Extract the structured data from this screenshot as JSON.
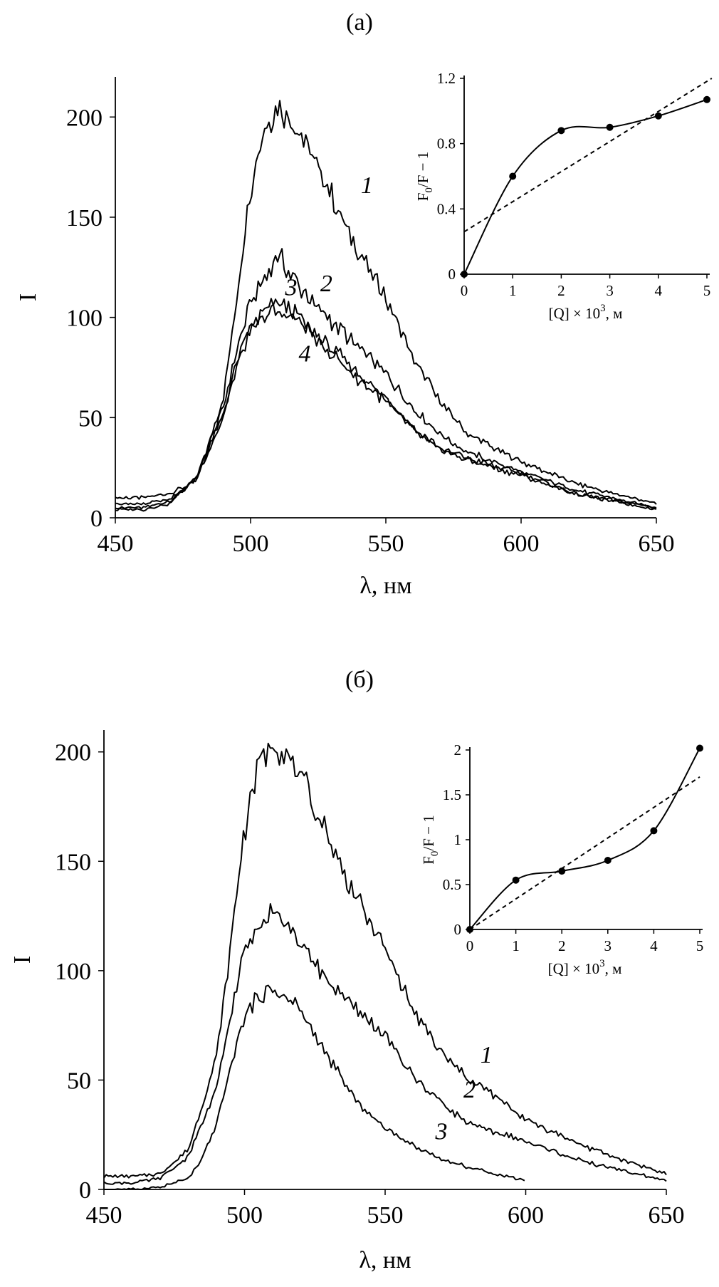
{
  "chart_data": [
    {
      "panel_label": "(a)",
      "type": "line",
      "xlabel": "λ, нм",
      "ylabel": "I",
      "xlim": [
        450,
        650
      ],
      "ylim": [
        0,
        220
      ],
      "x_ticks": [
        450,
        500,
        550,
        600,
        650
      ],
      "y_ticks": [
        0,
        50,
        100,
        150,
        200
      ],
      "series": [
        {
          "name": "1",
          "x": [
            450,
            460,
            470,
            480,
            490,
            495,
            500,
            505,
            510,
            515,
            520,
            530,
            540,
            550,
            560,
            570,
            580,
            590,
            600,
            620,
            650
          ],
          "y": [
            10,
            10,
            12,
            18,
            60,
            110,
            165,
            195,
            203,
            200,
            188,
            160,
            132,
            110,
            80,
            58,
            42,
            35,
            28,
            17,
            7
          ]
        },
        {
          "name": "2",
          "x": [
            450,
            460,
            470,
            480,
            490,
            495,
            500,
            505,
            510,
            515,
            520,
            530,
            540,
            550,
            560,
            570,
            580,
            590,
            600,
            620,
            650
          ],
          "y": [
            7,
            7,
            9,
            20,
            55,
            85,
            108,
            118,
            132,
            121,
            112,
            98,
            85,
            72,
            55,
            42,
            33,
            28,
            23,
            14,
            5
          ]
        },
        {
          "name": "3",
          "x": [
            450,
            460,
            470,
            480,
            490,
            495,
            500,
            505,
            510,
            515,
            520,
            530,
            540,
            550,
            560,
            570,
            580,
            590,
            600,
            620,
            650
          ],
          "y": [
            5,
            5,
            8,
            20,
            52,
            78,
            95,
            103,
            107,
            105,
            97,
            85,
            72,
            60,
            45,
            35,
            30,
            26,
            22,
            12,
            5
          ]
        },
        {
          "name": "4",
          "x": [
            450,
            460,
            470,
            480,
            490,
            495,
            500,
            505,
            510,
            515,
            520,
            530,
            540,
            550,
            560,
            570,
            580,
            590,
            600,
            620,
            650
          ],
          "y": [
            4,
            4,
            7,
            20,
            50,
            76,
            93,
            100,
            103,
            101,
            95,
            82,
            69,
            58,
            44,
            34,
            29,
            25,
            21,
            12,
            4
          ]
        }
      ],
      "inset": {
        "type": "scatter",
        "xlabel_main": "[Q] × 10",
        "xlabel_exp": "3",
        "xlabel_unit": ", м",
        "ylabel_main": "F",
        "ylabel_sub": "0",
        "ylabel_rest": "/F − 1",
        "xlim": [
          0,
          5
        ],
        "ylim": [
          0,
          1.2
        ],
        "x_ticks": [
          0,
          1,
          2,
          3,
          4,
          5
        ],
        "y_ticks": [
          0,
          0.4,
          0.8,
          1.2
        ],
        "y_tick_labels": [
          "0",
          "0.4",
          "0.8",
          "1.2"
        ],
        "points": {
          "x": [
            0,
            1,
            2,
            3,
            4,
            5
          ],
          "y": [
            0,
            0.6,
            0.88,
            0.9,
            0.97,
            1.07
          ]
        },
        "fit_line": {
          "x": [
            0,
            5.1
          ],
          "y": [
            0.26,
            1.2
          ]
        }
      },
      "curve_labels": [
        {
          "text": "1",
          "x": 543,
          "y": 162
        },
        {
          "text": "2",
          "x": 528,
          "y": 113
        },
        {
          "text": "3",
          "x": 515,
          "y": 111
        },
        {
          "text": "4",
          "x": 520,
          "y": 78
        }
      ]
    },
    {
      "panel_label": "(б)",
      "type": "line",
      "xlabel": "λ, нм",
      "ylabel": "I",
      "xlim": [
        450,
        650
      ],
      "ylim": [
        0,
        210
      ],
      "x_ticks": [
        450,
        500,
        550,
        600,
        650
      ],
      "y_ticks": [
        0,
        50,
        100,
        150,
        200
      ],
      "series": [
        {
          "name": "1",
          "x": [
            450,
            460,
            470,
            480,
            490,
            495,
            500,
            505,
            510,
            515,
            520,
            530,
            540,
            550,
            560,
            570,
            580,
            590,
            600,
            620,
            650
          ],
          "y": [
            6,
            6,
            7,
            18,
            60,
            110,
            165,
            195,
            203,
            200,
            188,
            160,
            132,
            110,
            82,
            62,
            50,
            42,
            32,
            20,
            7
          ]
        },
        {
          "name": "2",
          "x": [
            450,
            460,
            470,
            480,
            490,
            495,
            500,
            505,
            510,
            515,
            520,
            530,
            540,
            550,
            560,
            570,
            580,
            590,
            600,
            620,
            650
          ],
          "y": [
            3,
            3,
            5,
            15,
            45,
            80,
            110,
            118,
            132,
            121,
            112,
            95,
            82,
            70,
            52,
            40,
            30,
            26,
            22,
            13,
            4
          ]
        },
        {
          "name": "3",
          "x": [
            450,
            460,
            470,
            480,
            485,
            490,
            495,
            500,
            505,
            510,
            515,
            520,
            530,
            540,
            550,
            560,
            570,
            580,
            590,
            600
          ],
          "y": [
            0,
            0,
            1,
            5,
            14,
            30,
            55,
            80,
            88,
            91,
            88,
            82,
            60,
            40,
            28,
            20,
            14,
            10,
            7,
            4
          ]
        }
      ],
      "inset": {
        "type": "scatter",
        "xlabel_main": "[Q] × 10",
        "xlabel_exp": "3",
        "xlabel_unit": ", м",
        "ylabel_main": "F",
        "ylabel_sub": "0",
        "ylabel_rest": "/F − 1",
        "xlim": [
          0,
          5
        ],
        "ylim": [
          0,
          2
        ],
        "x_ticks": [
          0,
          1,
          2,
          3,
          4,
          5
        ],
        "y_ticks": [
          0,
          0.5,
          1,
          1.5,
          2
        ],
        "y_tick_labels": [
          "0",
          "0.5",
          "1",
          "1.5",
          "2"
        ],
        "points": {
          "x": [
            0,
            1,
            2,
            3,
            4,
            5
          ],
          "y": [
            0,
            0.55,
            0.65,
            0.77,
            1.1,
            2.02
          ]
        },
        "fit_line": {
          "x": [
            0,
            5
          ],
          "y": [
            0,
            1.7
          ]
        }
      },
      "curve_labels": [
        {
          "text": "1",
          "x": 586,
          "y": 58
        },
        {
          "text": "2",
          "x": 580,
          "y": 42
        },
        {
          "text": "3",
          "x": 570,
          "y": 23
        }
      ]
    }
  ]
}
